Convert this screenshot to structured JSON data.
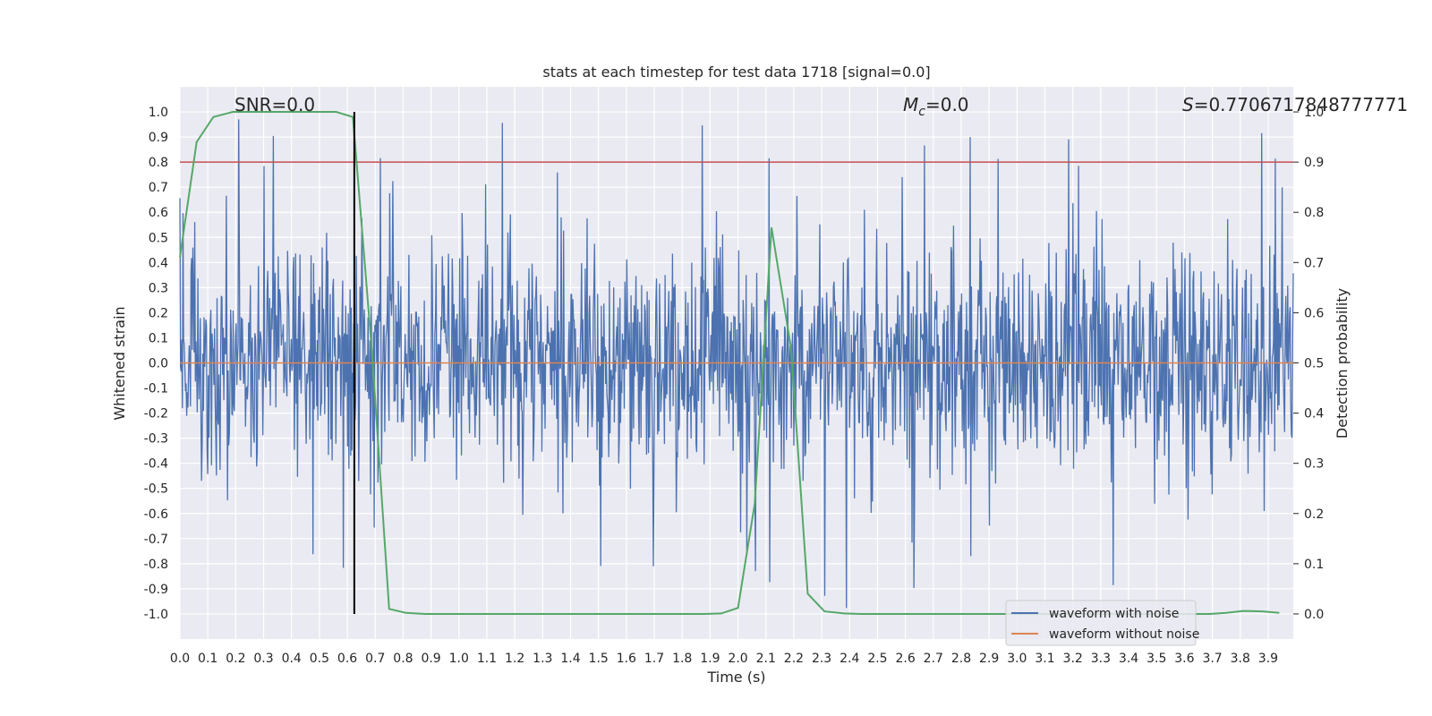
{
  "chart_data": {
    "type": "line",
    "title": "stats at each timestep for test data 1718 [signal=0.0]",
    "xlabel": "Time (s)",
    "ylabel_left": "Whitened strain",
    "ylabel_right": "Detection probability",
    "xlim": [
      0.0,
      3.99
    ],
    "ylim_left": [
      -1.1,
      1.1
    ],
    "ylim_right": [
      -0.05,
      1.05
    ],
    "x_ticks": [
      "0.0",
      "0.1",
      "0.2",
      "0.3",
      "0.4",
      "0.5",
      "0.6",
      "0.7",
      "0.8",
      "0.9",
      "1.0",
      "1.1",
      "1.2",
      "1.3",
      "1.4",
      "1.5",
      "1.6",
      "1.7",
      "1.8",
      "1.9",
      "2.0",
      "2.1",
      "2.2",
      "2.3",
      "2.4",
      "2.5",
      "2.6",
      "2.7",
      "2.8",
      "2.9",
      "3.0",
      "3.1",
      "3.2",
      "3.3",
      "3.4",
      "3.5",
      "3.6",
      "3.7",
      "3.8",
      "3.9"
    ],
    "y_ticks_left": [
      "1.0",
      "0.9",
      "0.8",
      "0.7",
      "0.6",
      "0.5",
      "0.4",
      "0.3",
      "0.2",
      "0.1",
      "0.0",
      "-0.1",
      "-0.2",
      "-0.3",
      "-0.4",
      "-0.5",
      "-0.6",
      "-0.7",
      "-0.8",
      "-0.9",
      "-1.0"
    ],
    "y_ticks_right": [
      "1.0",
      "0.9",
      "0.8",
      "0.7",
      "0.6",
      "0.5",
      "0.4",
      "0.3",
      "0.2",
      "0.1",
      "0.0"
    ],
    "annotations": {
      "snr": "SNR=0.0",
      "mc": "=0.0",
      "mc_symbol": "M",
      "mc_sub": "c",
      "s": "=0.7706717848777771",
      "s_symbol": "S"
    },
    "threshold_right": 0.9,
    "vertical_marker_x": 0.625,
    "series": [
      {
        "name": "waveform with noise",
        "axis": "left",
        "color": "#4c72b0",
        "description": "dense whitened noise, roughly within ±0.5 with spikes up to ±1.0",
        "amplitude_typical": 0.5,
        "amplitude_max": 1.0
      },
      {
        "name": "waveform without noise",
        "axis": "left",
        "color": "#dd8452",
        "values": "flat at 0.0"
      },
      {
        "name": "detection probability",
        "axis": "right",
        "color": "#55a868",
        "x": [
          0.0,
          0.06,
          0.12,
          0.19,
          0.25,
          0.31,
          0.38,
          0.44,
          0.5,
          0.56,
          0.62,
          0.69,
          0.75,
          0.81,
          0.88,
          0.94,
          1.0,
          1.06,
          1.12,
          1.19,
          1.25,
          1.31,
          1.38,
          1.44,
          1.5,
          1.56,
          1.62,
          1.69,
          1.75,
          1.81,
          1.88,
          1.94,
          2.0,
          2.06,
          2.12,
          2.19,
          2.25,
          2.31,
          2.38,
          2.44,
          2.5,
          2.56,
          2.62,
          2.69,
          2.75,
          2.81,
          2.88,
          2.94,
          3.0,
          3.06,
          3.12,
          3.19,
          3.25,
          3.31,
          3.38,
          3.44,
          3.5,
          3.56,
          3.62,
          3.69,
          3.75,
          3.81,
          3.88,
          3.94
        ],
        "values": [
          0.71,
          0.94,
          0.99,
          1.0,
          1.0,
          1.0,
          1.0,
          1.0,
          1.0,
          1.0,
          0.99,
          0.51,
          0.01,
          0.002,
          0.0,
          0.0,
          0.0,
          0.0,
          0.0,
          0.0,
          0.0,
          0.0,
          0.0,
          0.0,
          0.0,
          0.0,
          0.0,
          0.0,
          0.0,
          0.0,
          0.0,
          0.001,
          0.012,
          0.22,
          0.77,
          0.53,
          0.04,
          0.005,
          0.001,
          0.0,
          0.0,
          0.0,
          0.0,
          0.0,
          0.0,
          0.0,
          0.0,
          0.0,
          0.0,
          0.0,
          0.0,
          0.0,
          0.0,
          0.0,
          0.0,
          0.0,
          0.0,
          0.0,
          0.0,
          0.0,
          0.002,
          0.006,
          0.005,
          0.002
        ]
      }
    ],
    "legend_position": "lower-right"
  }
}
